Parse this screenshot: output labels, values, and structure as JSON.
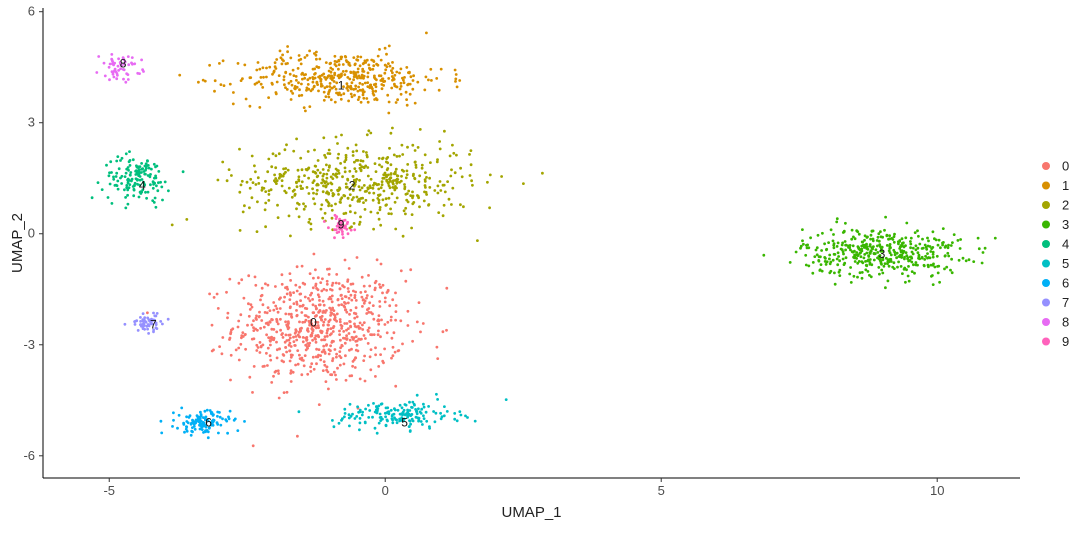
{
  "chart_data": {
    "type": "scatter",
    "title": "",
    "xlabel": "UMAP_1",
    "ylabel": "UMAP_2",
    "xlim": [
      -6.2,
      11.5
    ],
    "ylim": [
      -6.6,
      6.1
    ],
    "x_ticks": [
      -5,
      0,
      5,
      10
    ],
    "y_ticks": [
      6,
      3,
      0,
      -3,
      -6
    ],
    "grid": false,
    "legend_position": "right",
    "legend": [
      "0",
      "1",
      "2",
      "3",
      "4",
      "5",
      "6",
      "7",
      "8",
      "9"
    ],
    "series": [
      {
        "name": "0",
        "color": "#F8766D",
        "center": [
          -1.2,
          -2.5
        ],
        "spread": [
          1.4,
          1.4
        ],
        "n": 700,
        "label_pos": [
          -1.3,
          -2.4
        ]
      },
      {
        "name": "1",
        "color": "#D89000",
        "center": [
          -0.8,
          4.2
        ],
        "spread": [
          1.7,
          0.65
        ],
        "n": 420,
        "label_pos": [
          -0.8,
          4.0
        ]
      },
      {
        "name": "2",
        "color": "#A3A500",
        "center": [
          -0.5,
          1.4
        ],
        "spread": [
          1.9,
          1.0
        ],
        "n": 520,
        "label_pos": [
          -0.6,
          1.3
        ]
      },
      {
        "name": "3",
        "color": "#39B600",
        "center": [
          9.0,
          -0.5
        ],
        "spread": [
          1.3,
          0.6
        ],
        "n": 430,
        "label_pos": [
          9.0,
          -0.55
        ]
      },
      {
        "name": "4",
        "color": "#00BF7D",
        "center": [
          -4.5,
          1.5
        ],
        "spread": [
          0.55,
          0.55
        ],
        "n": 150,
        "label_pos": [
          -4.4,
          1.3
        ]
      },
      {
        "name": "5",
        "color": "#00BFC4",
        "center": [
          0.2,
          -4.9
        ],
        "spread": [
          1.0,
          0.35
        ],
        "n": 170,
        "label_pos": [
          0.35,
          -5.1
        ]
      },
      {
        "name": "6",
        "color": "#00B0F6",
        "center": [
          -3.3,
          -5.1
        ],
        "spread": [
          0.45,
          0.3
        ],
        "n": 120,
        "label_pos": [
          -3.2,
          -5.1
        ]
      },
      {
        "name": "7",
        "color": "#9590FF",
        "center": [
          -4.3,
          -2.4
        ],
        "spread": [
          0.3,
          0.22
        ],
        "n": 60,
        "label_pos": [
          -4.2,
          -2.45
        ]
      },
      {
        "name": "8",
        "color": "#E76BF3",
        "center": [
          -4.8,
          4.5
        ],
        "spread": [
          0.35,
          0.3
        ],
        "n": 55,
        "label_pos": [
          -4.75,
          4.6
        ]
      },
      {
        "name": "9",
        "color": "#FF62BC",
        "center": [
          -0.8,
          0.2
        ],
        "spread": [
          0.2,
          0.3
        ],
        "n": 50,
        "label_pos": [
          -0.8,
          0.25
        ]
      }
    ]
  }
}
